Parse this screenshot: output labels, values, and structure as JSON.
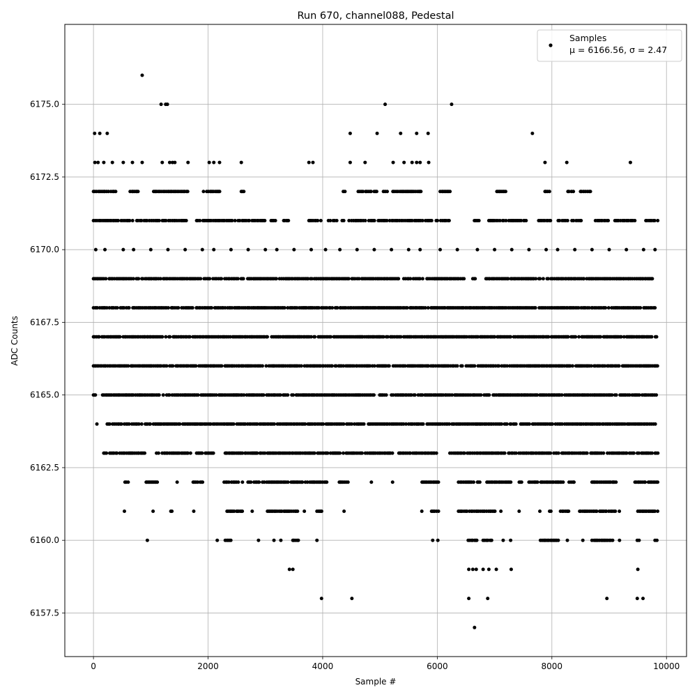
{
  "chart_data": {
    "type": "scatter",
    "title": "Run 670, channel088, Pedestal",
    "xlabel": "Sample #",
    "ylabel": "ADC Counts",
    "xlim": [
      -500,
      10350
    ],
    "ylim": [
      6156,
      6177.75
    ],
    "xticks": [
      0,
      2000,
      4000,
      6000,
      8000,
      10000
    ],
    "xtick_labels": [
      "0",
      "2000",
      "4000",
      "6000",
      "8000",
      "10000"
    ],
    "yticks": [
      6157.5,
      6160.0,
      6162.5,
      6165.0,
      6167.5,
      6170.0,
      6172.5,
      6175.0
    ],
    "ytick_labels": [
      "6157.5",
      "6160.0",
      "6162.5",
      "6165.0",
      "6167.5",
      "6170.0",
      "6172.5",
      "6175.0"
    ],
    "grid": true,
    "legend": {
      "placement": "top-right",
      "label": "Samples",
      "stats": "μ = 6166.56, σ = 2.47"
    },
    "series": [
      {
        "name": "Samples",
        "color": "#000000",
        "n_samples": 9850,
        "levels": [
          {
            "y": 6170,
            "x": [
              40,
              200,
              520,
              700,
              1000,
              1300,
              1600,
              1900,
              2100,
              2400,
              2700,
              3000,
              3200,
              3500,
              3800,
              4050,
              4300,
              4600,
              4900,
              5200,
              5500,
              5700,
              6050,
              6350,
              6700,
              7000,
              7300,
              7600,
              7900,
              8100,
              8400,
              8700,
              9000,
              9300,
              9600,
              9800
            ]
          },
          {
            "y": 6173,
            "x": [
              25,
              80,
              180,
              330,
              520,
              680,
              850,
              1200,
              1330,
              1380,
              1420,
              1650,
              2020,
              2100,
              2200,
              2580,
              3760,
              3830,
              4480,
              4740,
              5230,
              5420,
              5560,
              5640,
              5700,
              5850,
              7880,
              8260,
              9370
            ]
          },
          {
            "y": 6174,
            "x": [
              20,
              110,
              240,
              4480,
              4950,
              5360,
              5640,
              5840,
              7660
            ]
          },
          {
            "y": 6175,
            "x": [
              1180,
              1260,
              1290,
              5090,
              6250
            ]
          },
          {
            "y": 6176,
            "x": [
              850
            ]
          },
          {
            "y": 6158,
            "x": [
              3980,
              4510,
              6550,
              6880,
              8960,
              9490,
              9590
            ]
          },
          {
            "y": 6157,
            "x": [
              6650
            ]
          },
          {
            "y": 6159,
            "x": [
              3420,
              3480,
              6550,
              6620,
              6680,
              6800,
              6900,
              7030,
              7290,
              9500
            ]
          }
        ],
        "dense_levels": [
          {
            "y": 6172,
            "ranges": [
              [
                0,
                400
              ],
              [
                640,
                800
              ],
              [
                1050,
                1650
              ],
              [
                1920,
                2220
              ],
              [
                2580,
                2650
              ],
              [
                4360,
                4420
              ],
              [
                4620,
                4960
              ],
              [
                5060,
                5720
              ],
              [
                6050,
                6230
              ],
              [
                7040,
                7200
              ],
              [
                7880,
                7960
              ],
              [
                8280,
                8380
              ],
              [
                8500,
                8680
              ]
            ]
          },
          {
            "y": 6171,
            "ranges": [
              [
                0,
                1650
              ],
              [
                1800,
                2420
              ],
              [
                2470,
                3000
              ],
              [
                3100,
                3200
              ],
              [
                3320,
                3420
              ],
              [
                3760,
                3980
              ],
              [
                4100,
                4260
              ],
              [
                4340,
                4400
              ],
              [
                4460,
                6020
              ],
              [
                6060,
                6230
              ],
              [
                6620,
                6750
              ],
              [
                6900,
                7560
              ],
              [
                7740,
                7980
              ],
              [
                8110,
                8520
              ],
              [
                8760,
                9000
              ],
              [
                9100,
                9480
              ],
              [
                9640,
                9850
              ]
            ]
          },
          {
            "y": 6169,
            "ranges": [
              [
                0,
                6470
              ],
              [
                6620,
                6680
              ],
              [
                6850,
                9780
              ]
            ]
          },
          {
            "y": 6168,
            "ranges": [
              [
                0,
                9850
              ]
            ]
          },
          {
            "y": 6167,
            "ranges": [
              [
                0,
                9850
              ]
            ]
          },
          {
            "y": 6166,
            "ranges": [
              [
                0,
                9850
              ]
            ]
          },
          {
            "y": 6165,
            "ranges": [
              [
                0,
                40
              ],
              [
                160,
                9850
              ]
            ]
          },
          {
            "y": 6164,
            "ranges": [
              [
                60,
                80
              ],
              [
                240,
                4730
              ],
              [
                4800,
                9850
              ]
            ]
          },
          {
            "y": 6163,
            "ranges": [
              [
                180,
                900
              ],
              [
                1100,
                1700
              ],
              [
                1800,
                2100
              ],
              [
                2300,
                5220
              ],
              [
                5330,
                6000
              ],
              [
                6220,
                9850
              ]
            ]
          },
          {
            "y": 6162,
            "ranges": [
              [
                550,
                620
              ],
              [
                920,
                1130
              ],
              [
                1460,
                1470
              ],
              [
                1740,
                1920
              ],
              [
                2280,
                2550
              ],
              [
                2600,
                2900
              ],
              [
                2950,
                3400
              ],
              [
                3450,
                4100
              ],
              [
                4270,
                4450
              ],
              [
                4850,
                4860
              ],
              [
                5220,
                5230
              ],
              [
                5720,
                6030
              ],
              [
                6370,
                7300
              ],
              [
                7430,
                7480
              ],
              [
                7600,
                8200
              ],
              [
                8300,
                8400
              ],
              [
                8700,
                9150
              ],
              [
                9450,
                9850
              ]
            ]
          },
          {
            "y": 6161,
            "ranges": [
              [
                540,
                560
              ],
              [
                1040,
                1050
              ],
              [
                1350,
                1370
              ],
              [
                1750,
                1760
              ],
              [
                2310,
                2600
              ],
              [
                2770,
                2780
              ],
              [
                3020,
                3570
              ],
              [
                3680,
                3700
              ],
              [
                3900,
                4000
              ],
              [
                4350,
                4400
              ],
              [
                5730,
                5750
              ],
              [
                5900,
                6030
              ],
              [
                6370,
                7040
              ],
              [
                7110,
                7130
              ],
              [
                7380,
                7430
              ],
              [
                7790,
                7800
              ],
              [
                7960,
                8000
              ],
              [
                8150,
                8320
              ],
              [
                8460,
                9200
              ],
              [
                9500,
                9850
              ]
            ]
          },
          {
            "y": 6160,
            "ranges": [
              [
                940,
                950
              ],
              [
                2160,
                2170
              ],
              [
                2300,
                2400
              ],
              [
                2880,
                2890
              ],
              [
                3150,
                3160
              ],
              [
                3270,
                3280
              ],
              [
                3480,
                3620
              ],
              [
                3900,
                3910
              ],
              [
                5920,
                5930
              ],
              [
                6010,
                6020
              ],
              [
                6540,
                6700
              ],
              [
                6800,
                6950
              ],
              [
                7150,
                7160
              ],
              [
                7280,
                7290
              ],
              [
                7800,
                8120
              ],
              [
                8270,
                8280
              ],
              [
                8540,
                8550
              ],
              [
                8700,
                9070
              ],
              [
                9180,
                9190
              ],
              [
                9490,
                9540
              ],
              [
                9800,
                9850
              ]
            ]
          }
        ]
      }
    ]
  }
}
